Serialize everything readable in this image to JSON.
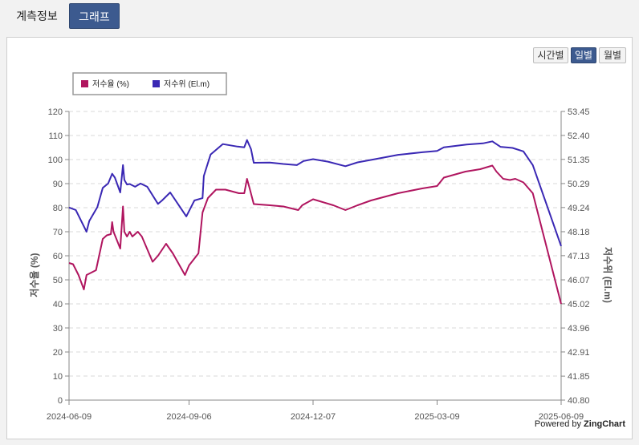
{
  "tabs": [
    {
      "label": "계측정보",
      "active": false
    },
    {
      "label": "그래프",
      "active": true
    }
  ],
  "period_buttons": [
    {
      "label": "시간별",
      "active": false
    },
    {
      "label": "일별",
      "active": true
    },
    {
      "label": "월별",
      "active": false
    }
  ],
  "watermark": {
    "prefix": "Powered by ",
    "brand": "ZingChart"
  },
  "chart_data": {
    "type": "line",
    "x_ticks": [
      "2024-06-09",
      "2024-09-06",
      "2024-12-07",
      "2025-03-09",
      "2025-06-09"
    ],
    "xlim": [
      "2024-06-09",
      "2025-06-09"
    ],
    "y_left": {
      "label": "저수율 (%)",
      "min": 0,
      "max": 120,
      "step": 10
    },
    "y_right": {
      "label": "저수위 (El.m)",
      "min": 40.8,
      "max": 53.45,
      "ticks": [
        "40.80",
        "41.85",
        "42.91",
        "43.96",
        "45.02",
        "46.07",
        "47.13",
        "48.18",
        "49.24",
        "50.29",
        "51.35",
        "52.40",
        "53.45"
      ]
    },
    "grid": true,
    "legend": {
      "position": "top-left",
      "items": [
        "저수율 (%)",
        "저수위 (El.m)"
      ]
    },
    "series": [
      {
        "name": "저수율 (%)",
        "axis": "left",
        "color": "#b0155f",
        "points": [
          [
            "2024-06-09",
            57
          ],
          [
            "2024-06-12",
            56.5
          ],
          [
            "2024-06-16",
            52
          ],
          [
            "2024-06-20",
            46
          ],
          [
            "2024-06-22",
            52
          ],
          [
            "2024-06-29",
            54
          ],
          [
            "2024-07-04",
            67
          ],
          [
            "2024-07-07",
            68.5
          ],
          [
            "2024-07-10",
            69
          ],
          [
            "2024-07-11",
            74
          ],
          [
            "2024-07-12",
            70
          ],
          [
            "2024-07-17",
            63
          ],
          [
            "2024-07-19",
            80.5
          ],
          [
            "2024-07-20",
            70
          ],
          [
            "2024-07-22",
            68
          ],
          [
            "2024-07-24",
            70
          ],
          [
            "2024-07-26",
            68
          ],
          [
            "2024-07-30",
            70
          ],
          [
            "2024-08-02",
            68
          ],
          [
            "2024-08-10",
            57.5
          ],
          [
            "2024-08-14",
            60
          ],
          [
            "2024-08-20",
            65
          ],
          [
            "2024-08-25",
            61
          ],
          [
            "2024-09-03",
            52
          ],
          [
            "2024-09-06",
            56
          ],
          [
            "2024-09-13",
            61
          ],
          [
            "2024-09-16",
            78
          ],
          [
            "2024-09-20",
            84
          ],
          [
            "2024-09-26",
            87.5
          ],
          [
            "2024-10-03",
            87.5
          ],
          [
            "2024-10-13",
            86
          ],
          [
            "2024-10-17",
            86
          ],
          [
            "2024-10-19",
            92
          ],
          [
            "2024-10-21",
            88
          ],
          [
            "2024-10-24",
            81.5
          ],
          [
            "2024-11-05",
            81
          ],
          [
            "2024-11-15",
            80.5
          ],
          [
            "2024-11-26",
            79
          ],
          [
            "2024-11-29",
            81
          ],
          [
            "2024-12-07",
            83.5
          ],
          [
            "2024-12-22",
            81
          ],
          [
            "2024-12-31",
            79
          ],
          [
            "2025-01-09",
            81
          ],
          [
            "2025-01-19",
            83
          ],
          [
            "2025-02-08",
            86
          ],
          [
            "2025-02-26",
            88
          ],
          [
            "2025-03-09",
            89
          ],
          [
            "2025-03-14",
            92.5
          ],
          [
            "2025-03-30",
            95
          ],
          [
            "2025-04-10",
            96
          ],
          [
            "2025-04-19",
            97.5
          ],
          [
            "2025-04-22",
            95
          ],
          [
            "2025-04-27",
            92
          ],
          [
            "2025-05-02",
            91.5
          ],
          [
            "2025-05-06",
            92
          ],
          [
            "2025-05-12",
            90.5
          ],
          [
            "2025-05-19",
            86
          ],
          [
            "2025-06-09",
            40
          ]
        ]
      },
      {
        "name": "저수위 (El.m)",
        "axis": "right",
        "color": "#3a28b4",
        "points": [
          [
            "2024-06-09",
            49.24
          ],
          [
            "2024-06-14",
            49.13
          ],
          [
            "2024-06-22",
            48.18
          ],
          [
            "2024-06-24",
            48.65
          ],
          [
            "2024-06-30",
            49.26
          ],
          [
            "2024-07-04",
            50.1
          ],
          [
            "2024-07-08",
            50.29
          ],
          [
            "2024-07-11",
            50.72
          ],
          [
            "2024-07-13",
            50.55
          ],
          [
            "2024-07-17",
            49.9
          ],
          [
            "2024-07-19",
            51.1
          ],
          [
            "2024-07-20",
            50.45
          ],
          [
            "2024-07-22",
            50.25
          ],
          [
            "2024-07-24",
            50.27
          ],
          [
            "2024-07-28",
            50.15
          ],
          [
            "2024-08-01",
            50.29
          ],
          [
            "2024-08-06",
            50.15
          ],
          [
            "2024-08-14",
            49.4
          ],
          [
            "2024-08-17",
            49.55
          ],
          [
            "2024-08-23",
            49.9
          ],
          [
            "2024-09-04",
            48.85
          ],
          [
            "2024-09-10",
            49.55
          ],
          [
            "2024-09-16",
            49.65
          ],
          [
            "2024-09-17",
            50.62
          ],
          [
            "2024-09-22",
            51.56
          ],
          [
            "2024-10-01",
            52.02
          ],
          [
            "2024-10-12",
            51.91
          ],
          [
            "2024-10-17",
            51.88
          ],
          [
            "2024-10-19",
            52.2
          ],
          [
            "2024-10-22",
            51.8
          ],
          [
            "2024-10-24",
            51.2
          ],
          [
            "2024-11-05",
            51.21
          ],
          [
            "2024-11-15",
            51.15
          ],
          [
            "2024-11-25",
            51.1
          ],
          [
            "2024-11-30",
            51.28
          ],
          [
            "2024-12-07",
            51.36
          ],
          [
            "2024-12-18",
            51.25
          ],
          [
            "2024-12-31",
            51.05
          ],
          [
            "2025-01-09",
            51.22
          ],
          [
            "2025-01-22",
            51.36
          ],
          [
            "2025-02-08",
            51.55
          ],
          [
            "2025-02-26",
            51.66
          ],
          [
            "2025-03-09",
            51.72
          ],
          [
            "2025-03-14",
            51.88
          ],
          [
            "2025-03-31",
            52.0
          ],
          [
            "2025-04-12",
            52.05
          ],
          [
            "2025-04-19",
            52.14
          ],
          [
            "2025-04-25",
            51.9
          ],
          [
            "2025-05-04",
            51.85
          ],
          [
            "2025-05-12",
            51.7
          ],
          [
            "2025-05-19",
            51.1
          ],
          [
            "2025-06-09",
            47.55
          ]
        ]
      }
    ]
  }
}
